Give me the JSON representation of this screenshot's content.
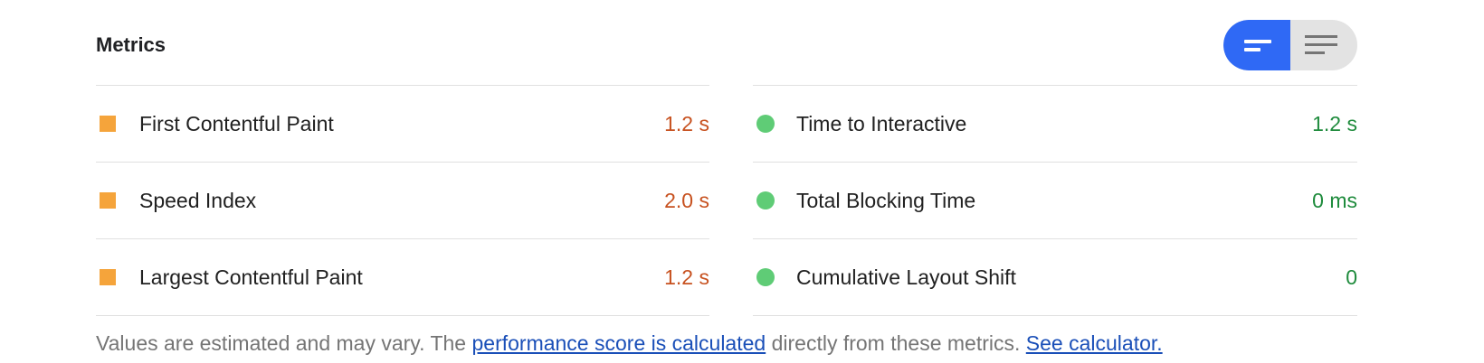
{
  "section": {
    "title": "Metrics"
  },
  "colors": {
    "toggle_active": "#2f69f5",
    "average": "#f5a43b",
    "average_text": "#c7511f",
    "pass": "#5fcc76",
    "pass_text": "#1e8b3c",
    "link": "#1a4fb8"
  },
  "view_toggle": {
    "options": [
      {
        "icon": "compact-list-icon",
        "active": true
      },
      {
        "icon": "expanded-list-icon",
        "active": false
      }
    ]
  },
  "metrics": {
    "left": [
      {
        "label": "First Contentful Paint",
        "value": "1.2 s",
        "status": "average",
        "icon": "orange-square-icon"
      },
      {
        "label": "Speed Index",
        "value": "2.0 s",
        "status": "average",
        "icon": "orange-square-icon"
      },
      {
        "label": "Largest Contentful Paint",
        "value": "1.2 s",
        "status": "average",
        "icon": "orange-square-icon"
      }
    ],
    "right": [
      {
        "label": "Time to Interactive",
        "value": "1.2 s",
        "status": "pass",
        "icon": "green-circle-icon"
      },
      {
        "label": "Total Blocking Time",
        "value": "0 ms",
        "status": "pass",
        "icon": "green-circle-icon"
      },
      {
        "label": "Cumulative Layout Shift",
        "value": "0",
        "status": "pass",
        "icon": "green-circle-icon"
      }
    ]
  },
  "footer": {
    "text_before": "Values are estimated and may vary. The ",
    "link1": "performance score is calculated",
    "text_middle": " directly from these metrics. ",
    "link2": "See calculator."
  }
}
